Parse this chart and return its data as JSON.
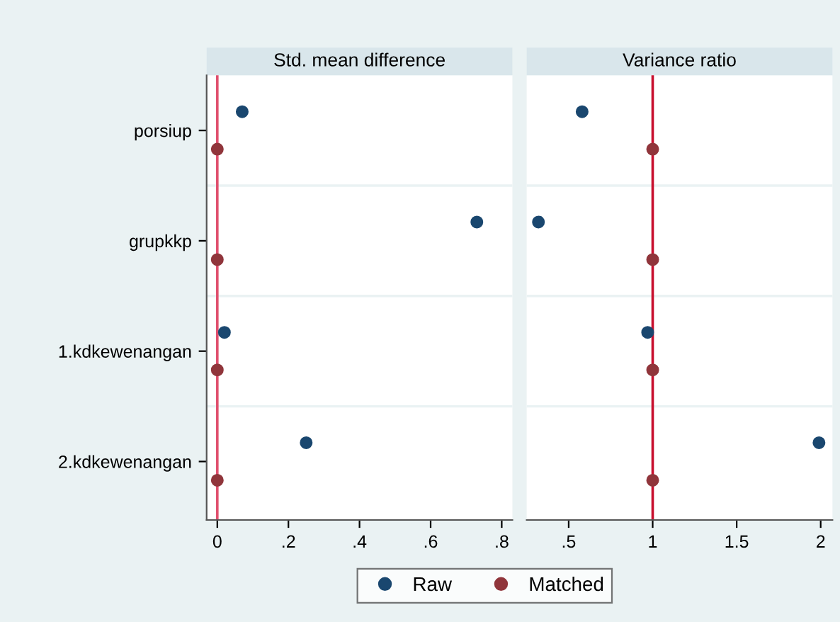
{
  "chart_data": [
    {
      "type": "scatter",
      "title": "Std. mean difference",
      "orientation": "horizontal",
      "categories": [
        "porsiup",
        "grupkkp",
        "1.kdkewenangan",
        "2.kdkewenangan"
      ],
      "series": [
        {
          "name": "Raw",
          "color": "#1a476f",
          "values": [
            0.07,
            0.73,
            0.02,
            0.25
          ]
        },
        {
          "name": "Matched",
          "color": "#90353b",
          "values": [
            0,
            0,
            0,
            0
          ]
        }
      ],
      "xlim": [
        -0.03,
        0.83
      ],
      "xticks": [
        0,
        {
          "value": 0.2,
          "label": ".2"
        },
        {
          "value": 0.4,
          "label": ".4"
        },
        {
          "value": 0.6,
          "label": ".6"
        },
        {
          "value": 0.8,
          "label": ".8"
        }
      ],
      "ref_lines": [
        {
          "axis": "x",
          "value": 0,
          "color": "#e0506e"
        }
      ],
      "grid": "y",
      "marker": "circle",
      "legend": "bottom"
    },
    {
      "type": "scatter",
      "title": "Variance ratio",
      "orientation": "horizontal",
      "categories": [
        "porsiup",
        "grupkkp",
        "1.kdkewenangan",
        "2.kdkewenangan"
      ],
      "series": [
        {
          "name": "Raw",
          "color": "#1a476f",
          "values": [
            0.58,
            0.32,
            0.97,
            1.99
          ]
        },
        {
          "name": "Matched",
          "color": "#90353b",
          "values": [
            1,
            1,
            1,
            1
          ]
        }
      ],
      "xlim": [
        0.25,
        2.07
      ],
      "xticks": [
        {
          "value": 0.5,
          "label": ".5"
        },
        1,
        1.5,
        2
      ],
      "ref_lines": [
        {
          "axis": "x",
          "value": 1,
          "color": "#c8102e"
        }
      ],
      "grid": "y",
      "marker": "circle",
      "tick_labels": "x"
    }
  ]
}
